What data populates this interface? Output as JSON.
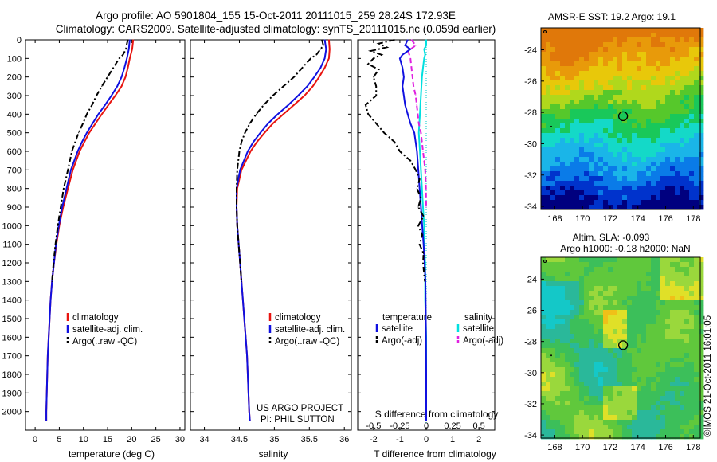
{
  "header": {
    "line1": "Argo profile: AO 5901804_155 15-Oct-2011 20111015_259 28.24S 172.93E",
    "line2": "Climatology: CARS2009. Satellite-adjusted climatology: synTS_20111015.nc (0.059d earlier)"
  },
  "colors": {
    "climatology": "#e8140f",
    "satellite": "#1010e0",
    "argo": "#000000",
    "satellite_s": "#00e0e0",
    "argo_s": "#e020e0"
  },
  "project_note": [
    "US ARGO PROJECT",
    "PI: PHIL SUTTON"
  ],
  "sst_title": "AMSR-E SST: 19.2 Argo: 19.1",
  "sla_title": [
    "Altim. SLA: -0.093",
    "Argo h1000: -0.18 h2000: NaN"
  ],
  "stamp": "©IMOS 21-Oct-2011 16:01:05",
  "chart_data": [
    {
      "type": "line",
      "id": "temperature",
      "xlabel": "temperature (deg C)",
      "ylabel": "",
      "xlim": [
        -2,
        31
      ],
      "ylim": [
        2100,
        0
      ],
      "xticks": [
        "0",
        "5",
        "10",
        "15",
        "20",
        "25",
        "30"
      ],
      "yticks": [
        "0",
        "100",
        "200",
        "300",
        "400",
        "500",
        "600",
        "700",
        "800",
        "900",
        "1000",
        "1100",
        "1200",
        "1300",
        "1400",
        "1500",
        "1600",
        "1700",
        "1800",
        "1900",
        "2000"
      ],
      "legend": [
        "climatology",
        "satellite-adj. clim.",
        "Argo(..raw -QC)"
      ],
      "series": [
        {
          "name": "climatology",
          "color": "#e8140f",
          "dash": "",
          "depth": [
            0,
            50,
            100,
            150,
            200,
            250,
            300,
            350,
            400,
            450,
            500,
            550,
            600,
            700,
            800,
            900,
            1000,
            1100,
            1200,
            1300,
            1400,
            1500,
            1600,
            1700,
            1800,
            1900,
            2000,
            2050
          ],
          "values": [
            20.3,
            20.1,
            19.6,
            19.2,
            18.7,
            17.9,
            16.6,
            15.2,
            13.8,
            12.5,
            11.2,
            10.2,
            9.2,
            7.8,
            6.8,
            5.8,
            5.0,
            4.4,
            3.9,
            3.5,
            3.2,
            3.0,
            2.8,
            2.6,
            2.5,
            2.4,
            2.3,
            2.3
          ]
        },
        {
          "name": "satellite-adj. clim.",
          "color": "#1010e0",
          "dash": "",
          "depth": [
            0,
            50,
            100,
            150,
            200,
            250,
            300,
            350,
            400,
            450,
            500,
            550,
            600,
            700,
            800,
            900,
            1000,
            1100,
            1200,
            1300,
            1400,
            1500,
            1600,
            1700,
            1800,
            1900,
            2000,
            2050
          ],
          "values": [
            19.6,
            19.4,
            19.0,
            18.5,
            17.9,
            17.0,
            15.8,
            14.5,
            13.1,
            11.9,
            10.7,
            9.7,
            8.8,
            7.4,
            6.5,
            5.6,
            4.9,
            4.3,
            3.9,
            3.5,
            3.2,
            3.0,
            2.8,
            2.6,
            2.5,
            2.4,
            2.3,
            2.3
          ]
        },
        {
          "name": "Argo(..raw -QC)",
          "color": "#000000",
          "dash": "7,3,2,3",
          "depth": [
            0,
            20,
            50,
            80,
            100,
            150,
            200,
            250,
            300,
            350,
            400,
            450,
            500,
            550,
            600,
            700,
            800,
            900,
            1000,
            1100,
            1200,
            1300
          ],
          "values": [
            19.2,
            19.0,
            18.8,
            18.2,
            17.4,
            16.2,
            15.0,
            13.8,
            12.7,
            11.8,
            10.7,
            9.9,
            9.0,
            8.3,
            7.6,
            6.8,
            5.9,
            5.3,
            4.7,
            4.2,
            3.8,
            3.5
          ]
        }
      ]
    },
    {
      "type": "line",
      "id": "salinity",
      "xlabel": "salinity",
      "ylabel": "",
      "xlim": [
        33.8,
        36.1
      ],
      "ylim": [
        2100,
        0
      ],
      "xticks": [
        "34",
        "34.5",
        "35",
        "35.5",
        "36"
      ],
      "legend": [
        "climatology",
        "satellite-adj. clim.",
        "Argo(..raw -QC)"
      ],
      "series": [
        {
          "name": "climatology",
          "color": "#e8140f",
          "dash": "",
          "depth": [
            0,
            50,
            100,
            150,
            200,
            250,
            300,
            350,
            400,
            450,
            500,
            550,
            600,
            700,
            800,
            900,
            1000,
            1100,
            1200,
            1300,
            1400,
            1500,
            1600,
            1700,
            1800,
            1900,
            2000,
            2050
          ],
          "values": [
            35.78,
            35.79,
            35.78,
            35.72,
            35.64,
            35.55,
            35.43,
            35.28,
            35.13,
            34.98,
            34.86,
            34.75,
            34.66,
            34.53,
            34.47,
            34.46,
            34.47,
            34.49,
            34.51,
            34.53,
            34.55,
            34.57,
            34.59,
            34.61,
            34.62,
            34.63,
            34.64,
            34.65
          ]
        },
        {
          "name": "satellite-adj. clim.",
          "color": "#1010e0",
          "dash": "",
          "depth": [
            0,
            50,
            100,
            150,
            200,
            250,
            300,
            350,
            400,
            450,
            500,
            550,
            600,
            700,
            800,
            900,
            1000,
            1100,
            1200,
            1300,
            1400,
            1500,
            1600,
            1700,
            1800,
            1900,
            2000,
            2050
          ],
          "values": [
            35.72,
            35.74,
            35.72,
            35.66,
            35.57,
            35.47,
            35.34,
            35.2,
            35.05,
            34.91,
            34.8,
            34.7,
            34.62,
            34.51,
            34.46,
            34.46,
            34.47,
            34.49,
            34.51,
            34.53,
            34.55,
            34.57,
            34.59,
            34.61,
            34.62,
            34.63,
            34.64,
            34.65
          ]
        },
        {
          "name": "Argo(..raw -QC)",
          "color": "#000000",
          "dash": "7,3,2,3",
          "depth": [
            0,
            30,
            50,
            80,
            100,
            150,
            200,
            250,
            300,
            350,
            400,
            450,
            500,
            550,
            600,
            700,
            800,
            900,
            1000,
            1100,
            1200,
            1300
          ],
          "values": [
            35.68,
            35.7,
            35.66,
            35.6,
            35.52,
            35.4,
            35.28,
            35.13,
            34.98,
            34.85,
            34.74,
            34.65,
            34.58,
            34.53,
            34.5,
            34.47,
            34.46,
            34.46,
            34.47,
            34.49,
            34.51,
            34.53
          ]
        }
      ]
    },
    {
      "type": "line",
      "id": "difference",
      "xlabel": "T difference from climatology",
      "xlabel_top": "S difference from climatology",
      "xlim": [
        -2.6,
        2.6
      ],
      "ylim": [
        2100,
        0
      ],
      "xticks_bottom": [
        "-2",
        "-1",
        "0",
        "1",
        "2"
      ],
      "xticks_top": [
        "-0.5",
        "-0.25",
        "0",
        "0.25",
        "0.5"
      ],
      "legend_headers": [
        "temperature",
        "salinity"
      ],
      "legend_t": [
        "satellite",
        "Argo(-adj)"
      ],
      "legend_s": [
        "satellite",
        "Argo(-adj)"
      ],
      "series": [
        {
          "name": "temperature satellite",
          "color": "#1010e0",
          "dash": "",
          "depth": [
            0,
            30,
            50,
            80,
            100,
            150,
            200,
            250,
            300,
            350,
            400,
            450,
            500,
            600,
            700,
            800,
            900,
            1000,
            1100,
            1200,
            1300,
            1400,
            1600,
            1800,
            2000,
            2050
          ],
          "values": [
            -0.7,
            -0.8,
            -0.6,
            -0.9,
            -1.0,
            -0.9,
            -0.85,
            -0.9,
            -0.85,
            -0.8,
            -0.7,
            -0.6,
            -0.45,
            -0.35,
            -0.3,
            -0.25,
            -0.2,
            -0.15,
            -0.1,
            -0.06,
            -0.03,
            -0.02,
            -0.01,
            0,
            0,
            0
          ]
        },
        {
          "name": "temperature Argo(-adj)",
          "color": "#000000",
          "dash": "7,3,2,3",
          "depth": [
            0,
            20,
            40,
            60,
            80,
            100,
            130,
            160,
            200,
            250,
            300,
            350,
            400,
            450,
            500,
            550,
            600,
            650,
            700,
            750,
            800,
            850,
            900,
            950,
            1000,
            1050,
            1100,
            1150,
            1200,
            1300
          ],
          "values": [
            -1.2,
            -1.8,
            -1.5,
            -2.1,
            -1.7,
            -2.0,
            -2.2,
            -1.8,
            -2.0,
            -1.9,
            -1.9,
            -2.3,
            -2.2,
            -1.9,
            -1.6,
            -1.2,
            -1.0,
            -0.6,
            -0.4,
            -0.25,
            -0.35,
            -0.2,
            -0.3,
            -0.1,
            -0.3,
            -0.15,
            -0.25,
            -0.1,
            -0.12,
            -0.05
          ]
        },
        {
          "name": "salinity satellite",
          "color": "#00e0e0",
          "dash": "",
          "depth": [
            0,
            30,
            50,
            80,
            100,
            150,
            200,
            300,
            400,
            500,
            600,
            700,
            800,
            900,
            1000,
            1100,
            1200,
            1400,
            1600,
            1800,
            2000,
            2050
          ],
          "values": [
            0.0,
            0.0,
            -0.02,
            -0.01,
            -0.02,
            -0.03,
            -0.04,
            -0.05,
            -0.06,
            -0.07,
            -0.06,
            -0.05,
            -0.04,
            -0.03,
            -0.02,
            -0.02,
            -0.01,
            -0.01,
            0,
            0,
            0,
            0
          ]
        },
        {
          "name": "salinity Argo(-adj)",
          "color": "#e020e0",
          "dash": "6,4",
          "depth": [
            0,
            30,
            60,
            80,
            100,
            150,
            200,
            250,
            300,
            350,
            400,
            450,
            500,
            550,
            600,
            650,
            700,
            750,
            800,
            900
          ],
          "values": [
            -0.14,
            -0.1,
            -0.17,
            -0.16,
            -0.15,
            -0.14,
            -0.13,
            -0.12,
            -0.1,
            -0.09,
            -0.08,
            -0.07,
            -0.05,
            -0.04,
            -0.03,
            -0.02,
            -0.01,
            -0.005,
            -0.002,
            0.0
          ]
        }
      ]
    },
    {
      "type": "heatmap",
      "id": "sst_map",
      "title": "AMSR-E SST: 19.2 Argo: 19.1",
      "xlim": [
        167,
        178.5
      ],
      "ylim": [
        -34.2,
        -22.6
      ],
      "xticks": [
        "168",
        "170",
        "172",
        "174",
        "176",
        "178"
      ],
      "yticks": [
        "-24",
        "-26",
        "-28",
        "-30",
        "-32",
        "-34"
      ],
      "marker": {
        "lon": 172.93,
        "lat": -28.24
      },
      "palette": [
        "#00007f",
        "#0033cc",
        "#0a7be8",
        "#1ab5e8",
        "#14d9c8",
        "#19c85a",
        "#56c82b",
        "#b0d81c",
        "#e8c80a",
        "#e89a0a",
        "#e0780a"
      ]
    },
    {
      "type": "heatmap",
      "id": "sla_map",
      "title": "Altim. SLA: -0.093",
      "xlim": [
        167,
        178.5
      ],
      "ylim": [
        -34.2,
        -22.6
      ],
      "xticks": [
        "168",
        "170",
        "172",
        "174",
        "176",
        "178"
      ],
      "yticks": [
        "-24",
        "-26",
        "-28",
        "-30",
        "-32",
        "-34"
      ],
      "marker": {
        "lon": 172.93,
        "lat": -28.24
      },
      "palette": [
        "#14c8c8",
        "#2ab89a",
        "#3cbf5a",
        "#60c83c",
        "#9ad83c",
        "#e0e028",
        "#f0c018",
        "#f0a010"
      ]
    }
  ]
}
